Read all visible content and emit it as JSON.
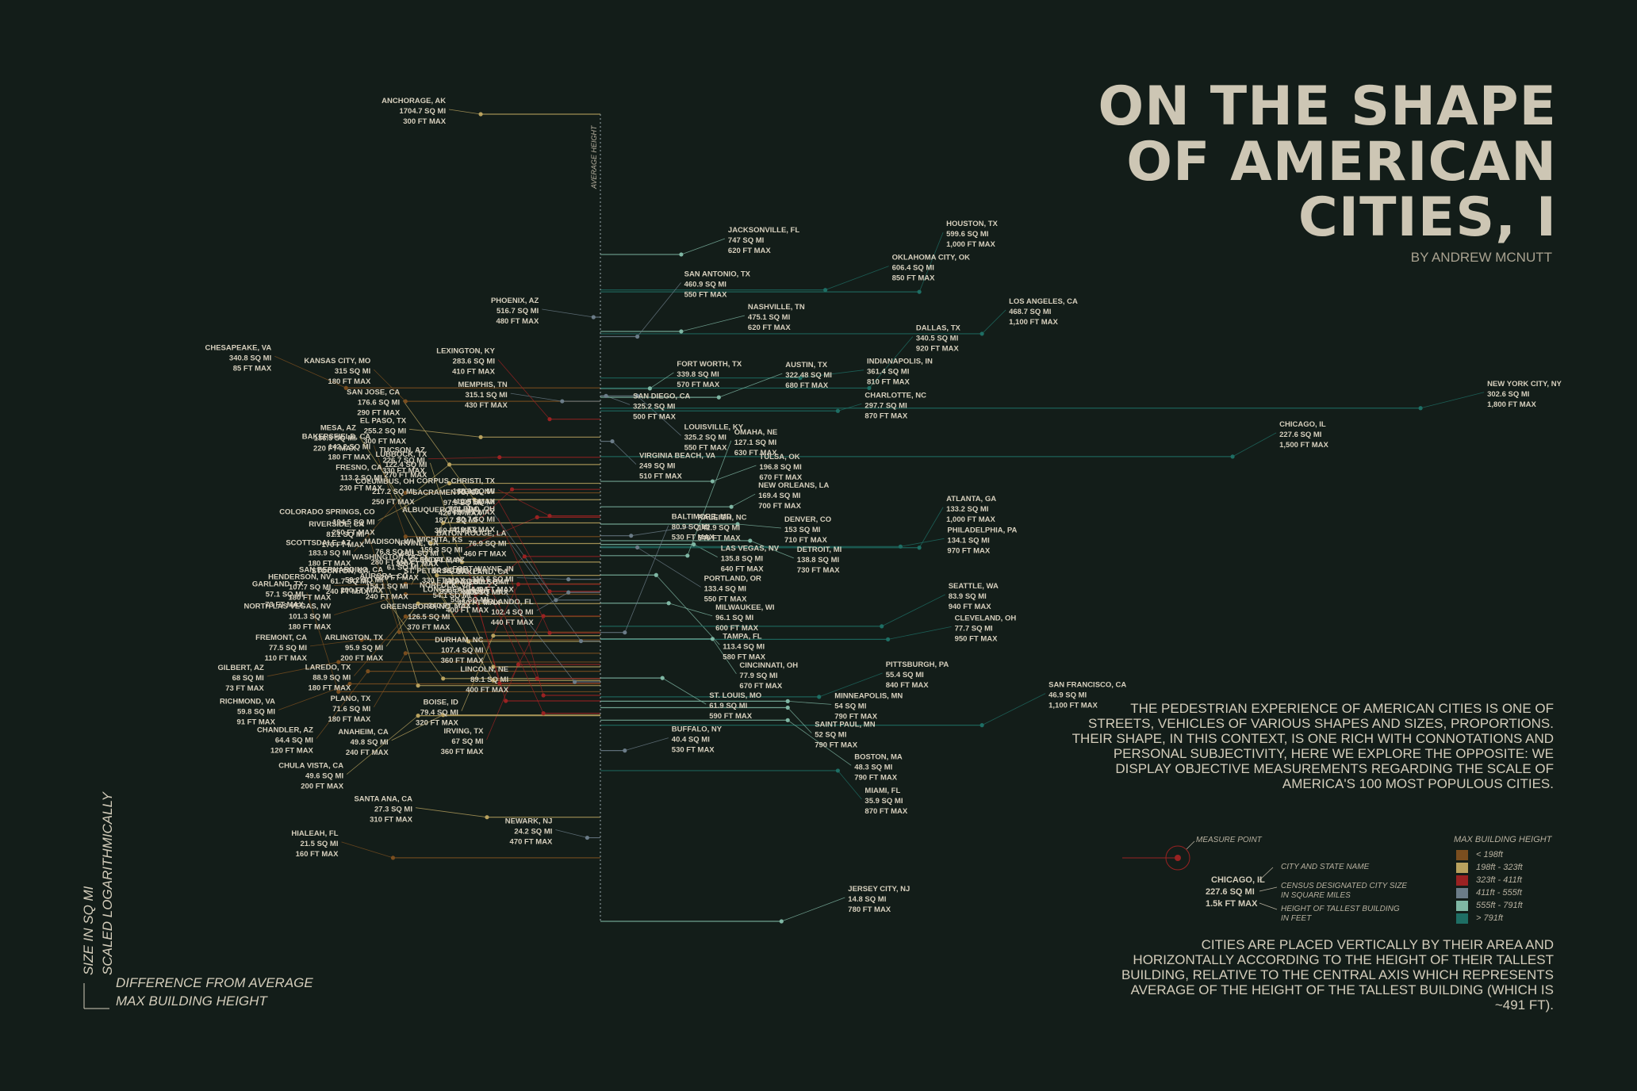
{
  "title": "ON THE SHAPE\nOF AMERICAN\nCITIES, I",
  "byline": "BY ANDREW MCNUTT",
  "intro": "THE PEDESTRIAN EXPERIENCE OF AMERICAN CITIES IS ONE OF STREETS, VEHICLES OF VARIOUS SHAPES AND SIZES, PROPORTIONS. THEIR SHAPE, IN THIS CONTEXT, IS ONE RICH WITH CONNOTATIONS AND PERSONAL SUBJECTIVITY, HERE WE EXPLORE THE OPPOSITE: WE DISPLAY OBJECTIVE MEASUREMENTS REGARDING THE SCALE OF AMERICA'S 100 MOST POPULOUS CITIES.",
  "method": "CITIES ARE PLACED VERTICALLY BY THEIR AREA AND HORIZONTALLY ACCORDING TO THE HEIGHT OF THEIR TALLEST BUILDING, RELATIVE TO THE CENTRAL AXIS WHICH REPRESENTS AVERAGE OF THE HEIGHT OF THE TALLEST BUILDING (WHICH IS ~491 FT).",
  "axis": {
    "y_label_1": "SIZE IN SQ MI",
    "y_label_2": "SCALED LOGARITHMICALLY",
    "x_label_1": "DIFFERENCE FROM AVERAGE",
    "x_label_2": "MAX BUILDING HEIGHT",
    "center_label": "AVERAGE HEIGHT"
  },
  "legend": {
    "title": "MAX BUILDING HEIGHT",
    "items": [
      {
        "label": "< 198ft",
        "color": "#7a4e1f"
      },
      {
        "label": "198ft - 323ft",
        "color": "#b9a25e"
      },
      {
        "label": "323ft - 411ft",
        "color": "#9a2222"
      },
      {
        "label": "411ft - 555ft",
        "color": "#6b7c88"
      },
      {
        "label": "555ft - 791ft",
        "color": "#7fb7a4"
      },
      {
        "label": "> 791ft",
        "color": "#1e6e64"
      }
    ],
    "measure_point": "MEASURE POINT",
    "example_city": "CHICAGO, IL",
    "example_area": "227.6 SQ MI",
    "example_height": "1.5k FT MAX",
    "key_city": "CITY AND STATE NAME",
    "key_area_1": "CENSUS DESIGNATED CITY SIZE",
    "key_area_2": "IN SQUARE MILES",
    "key_height_1": "HEIGHT OF TALLEST BUILDING",
    "key_height_2": "IN FEET"
  },
  "chart_data": {
    "type": "scatter",
    "average_height_ft": 491,
    "y_scale": "log",
    "points": [
      {
        "city": "ANCHORAGE, AK",
        "area": "1704.7 SQ MI",
        "height": "300 FT MAX",
        "area_sq_mi": 1704.7,
        "height_ft": 300
      },
      {
        "city": "JACKSONVILLE, FL",
        "area": "747 SQ MI",
        "height": "620 FT MAX",
        "area_sq_mi": 747,
        "height_ft": 620
      },
      {
        "city": "OKLAHOMA CITY, OK",
        "area": "606.4 SQ MI",
        "height": "850 FT MAX",
        "area_sq_mi": 606.4,
        "height_ft": 850
      },
      {
        "city": "HOUSTON, TX",
        "area": "599.6 SQ MI",
        "height": "1,000 FT MAX",
        "area_sq_mi": 599.6,
        "height_ft": 1000
      },
      {
        "city": "PHOENIX, AZ",
        "area": "516.7 SQ MI",
        "height": "480 FT MAX",
        "area_sq_mi": 516.7,
        "height_ft": 480
      },
      {
        "city": "NASHVILLE, TN",
        "area": "475.1 SQ MI",
        "height": "620 FT MAX",
        "area_sq_mi": 475.1,
        "height_ft": 620
      },
      {
        "city": "LOS ANGELES, CA",
        "area": "468.7 SQ MI",
        "height": "1,100 FT MAX",
        "area_sq_mi": 468.7,
        "height_ft": 1100
      },
      {
        "city": "SAN ANTONIO, TX",
        "area": "460.9 SQ MI",
        "height": "550 FT MAX",
        "area_sq_mi": 460.9,
        "height_ft": 550
      },
      {
        "city": "INDIANAPOLIS, IN",
        "area": "361.4 SQ MI",
        "height": "810 FT MAX",
        "area_sq_mi": 361.4,
        "height_ft": 810
      },
      {
        "city": "FORT WORTH, TX",
        "area": "339.8 SQ MI",
        "height": "570 FT MAX",
        "area_sq_mi": 339.8,
        "height_ft": 570
      },
      {
        "city": "DALLAS, TX",
        "area": "340.5 SQ MI",
        "height": "920 FT MAX",
        "area_sq_mi": 340.5,
        "height_ft": 920
      },
      {
        "city": "CHESAPEAKE, VA",
        "area": "340.8 SQ MI",
        "height": "85 FT MAX",
        "area_sq_mi": 340.8,
        "height_ft": 85
      },
      {
        "city": "SAN DIEGO, CA",
        "area": "325.2 SQ MI",
        "height": "500 FT MAX",
        "area_sq_mi": 325.2,
        "height_ft": 500
      },
      {
        "city": "LOUISVILLE, KY",
        "area": "325.2 SQ MI",
        "height": "550 FT MAX",
        "area_sq_mi": 325.2,
        "height_ft": 550
      },
      {
        "city": "AUSTIN, TX",
        "area": "322.48 SQ MI",
        "height": "680 FT MAX",
        "area_sq_mi": 322.48,
        "height_ft": 680
      },
      {
        "city": "KANSAS CITY, MO",
        "area": "315 SQ MI",
        "height": "180 FT MAX",
        "area_sq_mi": 315,
        "height_ft": 180
      },
      {
        "city": "MEMPHIS, TN",
        "area": "315.1 SQ MI",
        "height": "430 FT MAX",
        "area_sq_mi": 315.1,
        "height_ft": 430
      },
      {
        "city": "NEW YORK CITY, NY",
        "area": "302.6 SQ MI",
        "height": "1,800 FT MAX",
        "area_sq_mi": 302.6,
        "height_ft": 1800
      },
      {
        "city": "CHARLOTTE, NC",
        "area": "297.7 SQ MI",
        "height": "870 FT MAX",
        "area_sq_mi": 297.7,
        "height_ft": 870
      },
      {
        "city": "LEXINGTON, KY",
        "area": "283.6 SQ MI",
        "height": "410 FT MAX",
        "area_sq_mi": 283.6,
        "height_ft": 410
      },
      {
        "city": "EL PASO, TX",
        "area": "255.2 SQ MI",
        "height": "300 FT MAX",
        "area_sq_mi": 255.2,
        "height_ft": 300
      },
      {
        "city": "VIRGINIA BEACH, VA",
        "area": "249 SQ MI",
        "height": "510 FT MAX",
        "area_sq_mi": 249,
        "height_ft": 510
      },
      {
        "city": "CHICAGO, IL",
        "area": "227.6 SQ MI",
        "height": "1,500 FT MAX",
        "area_sq_mi": 227.6,
        "height_ft": 1500
      },
      {
        "city": "TUCSON, AZ",
        "area": "226.7 SQ MI",
        "height": "330 FT MAX",
        "area_sq_mi": 226.7,
        "height_ft": 330
      },
      {
        "city": "COLUMBUS, OH",
        "area": "217.2 SQ MI",
        "height": "250 FT MAX",
        "area_sq_mi": 217.2,
        "height_ft": 250
      },
      {
        "city": "TULSA, OK",
        "area": "196.8 SQ MI",
        "height": "670 FT MAX",
        "area_sq_mi": 196.8,
        "height_ft": 670
      },
      {
        "city": "COLORADO SPRINGS, CO",
        "area": "194.5 SQ MI",
        "height": "250 FT MAX",
        "area_sq_mi": 194.5,
        "height_ft": 250
      },
      {
        "city": "ALBUQUERQUE, NM",
        "area": "187.7 SQ MI",
        "height": "350 FT MAX",
        "area_sq_mi": 187.7,
        "height_ft": 350
      },
      {
        "city": "SCOTTSDALE, AZ",
        "area": "183.9 SQ MI",
        "height": "180 FT MAX",
        "area_sq_mi": 183.9,
        "height_ft": 180
      },
      {
        "city": "SAN JOSE, CA",
        "area": "176.6 SQ MI",
        "height": "290 FT MAX",
        "area_sq_mi": 176.6,
        "height_ft": 290
      },
      {
        "city": "NEW ORLEANS, LA",
        "area": "169.4 SQ MI",
        "height": "700 FT MAX",
        "area_sq_mi": 169.4,
        "height_ft": 700
      },
      {
        "city": "CORPUS CHRISTI, TX",
        "area": "160.6 SQ MI",
        "height": "410 FT MAX",
        "area_sq_mi": 160.6,
        "height_ft": 410
      },
      {
        "city": "WICHITA, KS",
        "area": "159.3 SQ MI",
        "height": "390 FT MAX",
        "area_sq_mi": 159.3,
        "height_ft": 390
      },
      {
        "city": "AURORA, CO",
        "area": "154.1 SQ MI",
        "height": "240 FT MAX",
        "area_sq_mi": 154.1,
        "height_ft": 240
      },
      {
        "city": "DENVER, CO",
        "area": "153 SQ MI",
        "height": "710 FT MAX",
        "area_sq_mi": 153,
        "height_ft": 710
      },
      {
        "city": "RALEIGH, NC",
        "area": "142.9 SQ MI",
        "height": "540 FT MAX",
        "area_sq_mi": 142.9,
        "height_ft": 540
      },
      {
        "city": "BAKERSFIELD, CA",
        "area": "142.2 SQ MI",
        "height": "180 FT MAX",
        "area_sq_mi": 142.2,
        "height_ft": 180
      },
      {
        "city": "DETROIT, MI",
        "area": "138.8 SQ MI",
        "height": "730 FT MAX",
        "area_sq_mi": 138.8,
        "height_ft": 730
      },
      {
        "city": "MESA, AZ",
        "area": "136.5 SQ MI",
        "height": "220 FT MAX",
        "area_sq_mi": 136.5,
        "height_ft": 220
      },
      {
        "city": "LAS VEGAS, NV",
        "area": "135.8 SQ MI",
        "height": "640 FT MAX",
        "area_sq_mi": 135.8,
        "height_ft": 640
      },
      {
        "city": "PHILADELPHIA, PA",
        "area": "134.1 SQ MI",
        "height": "970 FT MAX",
        "area_sq_mi": 134.1,
        "height_ft": 970
      },
      {
        "city": "PORTLAND, OR",
        "area": "133.4 SQ MI",
        "height": "550 FT MAX",
        "area_sq_mi": 133.4,
        "height_ft": 550
      },
      {
        "city": "ATLANTA, GA",
        "area": "133.2 SQ MI",
        "height": "1,000 FT MAX",
        "area_sq_mi": 133.2,
        "height_ft": 1000
      },
      {
        "city": "OMAHA, NE",
        "area": "127.1 SQ MI",
        "height": "630 FT MAX",
        "area_sq_mi": 127.1,
        "height_ft": 630
      },
      {
        "city": "GREENSBORO, NC",
        "area": "126.5 SQ MI",
        "height": "370 FT MAX",
        "area_sq_mi": 126.5,
        "height_ft": 370
      },
      {
        "city": "LUBBOCK, TX",
        "area": "122.4 SQ MI",
        "height": "270 FT MAX",
        "area_sq_mi": 122.4,
        "height_ft": 270
      },
      {
        "city": "FORT WAYNE, IN",
        "area": "110.6 SQ MI",
        "height": "440 FT MAX",
        "area_sq_mi": 110.6,
        "height_ft": 440
      },
      {
        "city": "HENDERSON, NV",
        "area": "107.7 SQ MI",
        "height": "180 FT MAX",
        "area_sq_mi": 107.7,
        "height_ft": 180
      },
      {
        "city": "DURHAM, NC",
        "area": "107.4 SQ MI",
        "height": "360 FT MAX",
        "area_sq_mi": 107.4,
        "height_ft": 360
      },
      {
        "city": "FRESNO, CA",
        "area": "113.2 SQ MI",
        "height": "230 FT MAX",
        "area_sq_mi": 113.2,
        "height_ft": 230
      },
      {
        "city": "NORTH LAS VEGAS, NV",
        "area": "101.3 SQ MI",
        "height": "180 FT MAX",
        "area_sq_mi": 101.3,
        "height_ft": 180
      },
      {
        "city": "ORLANDO, FL",
        "area": "102.4 SQ MI",
        "height": "440 FT MAX",
        "area_sq_mi": 102.4,
        "height_ft": 440
      },
      {
        "city": "RENO, NV",
        "area": "103 SQ MI",
        "height": "410 FT MAX",
        "area_sq_mi": 103,
        "height_ft": 410
      },
      {
        "city": "SACRAMENTO, CA",
        "area": "97.9 SQ MI",
        "height": "420 FT MAX",
        "area_sq_mi": 97.9,
        "height_ft": 420
      },
      {
        "city": "ARLINGTON, TX",
        "area": "95.9 SQ MI",
        "height": "200 FT MAX",
        "area_sq_mi": 95.9,
        "height_ft": 200
      },
      {
        "city": "MILWAUKEE, WI",
        "area": "96.1 SQ MI",
        "height": "600 FT MAX",
        "area_sq_mi": 96.1,
        "height_ft": 600
      },
      {
        "city": "TAMPA, FL",
        "area": "113.4 SQ MI",
        "height": "580 FT MAX",
        "area_sq_mi": 113.4,
        "height_ft": 580
      },
      {
        "city": "LINCOLN, NE",
        "area": "89.1 SQ MI",
        "height": "400 FT MAX",
        "area_sq_mi": 89.1,
        "height_ft": 400
      },
      {
        "city": "LAREDO, TX",
        "area": "88.9 SQ MI",
        "height": "180 FT MAX",
        "area_sq_mi": 88.9,
        "height_ft": 180
      },
      {
        "city": "SEATTLE, WA",
        "area": "83.9 SQ MI",
        "height": "940 FT MAX",
        "area_sq_mi": 83.9,
        "height_ft": 940
      },
      {
        "city": "BOISE, ID",
        "area": "79.4 SQ MI",
        "height": "320 FT MAX",
        "area_sq_mi": 79.4,
        "height_ft": 320
      },
      {
        "city": "FREMONT, CA",
        "area": "77.5 SQ MI",
        "height": "110 FT MAX",
        "area_sq_mi": 77.5,
        "height_ft": 110
      },
      {
        "city": "CLEVELAND, OH",
        "area": "77.7 SQ MI",
        "height": "950 FT MAX",
        "area_sq_mi": 77.7,
        "height_ft": 950
      },
      {
        "city": "CINCINNATI, OH",
        "area": "77.9 SQ MI",
        "height": "670 FT MAX",
        "area_sq_mi": 77.9,
        "height_ft": 670
      },
      {
        "city": "MADISON, WI",
        "area": "76.8 SQ MI",
        "height": "280 FT MAX",
        "area_sq_mi": 76.8,
        "height_ft": 280
      },
      {
        "city": "BATON ROUGE, LA",
        "area": "76.9 SQ MI",
        "height": "460 FT MAX",
        "area_sq_mi": 76.9,
        "height_ft": 460
      },
      {
        "city": "PLANO, TX",
        "area": "71.6 SQ MI",
        "height": "180 FT MAX",
        "area_sq_mi": 71.6,
        "height_ft": 180
      },
      {
        "city": "TOLEDO, OH",
        "area": "80.7 SQ MI",
        "height": "410 FT MAX",
        "area_sq_mi": 80.7,
        "height_ft": 410
      },
      {
        "city": "GILBERT, AZ",
        "area": "68 SQ MI",
        "height": "73 FT MAX",
        "area_sq_mi": 68,
        "height_ft": 73
      },
      {
        "city": "RIVERSIDE, CA",
        "area": "81.1 SQ MI",
        "height": "170 FT MAX",
        "area_sq_mi": 81.1,
        "height_ft": 170
      },
      {
        "city": "BALTIMORE, MD",
        "area": "80.9 SQ MI",
        "height": "530 FT MAX",
        "area_sq_mi": 80.9,
        "height_ft": 530
      },
      {
        "city": "WASHINGTON, DC",
        "area": "61 SQ MI",
        "height": "320 FT MAX",
        "area_sq_mi": 61,
        "height_ft": 320
      },
      {
        "city": "IRVING, TX",
        "area": "67 SQ MI",
        "height": "360 FT MAX",
        "area_sq_mi": 67,
        "height_ft": 360
      },
      {
        "city": "CHANDLER, AZ",
        "area": "64.4 SQ MI",
        "height": "120 FT MAX",
        "area_sq_mi": 64.4,
        "height_ft": 120
      },
      {
        "city": "PITTSBURGH, PA",
        "area": "55.4 SQ MI",
        "height": "840 FT MAX",
        "area_sq_mi": 55.4,
        "height_ft": 840
      },
      {
        "city": "GLENDALE, AZ",
        "area": "60 SQ MI",
        "height": "330 FT MAX",
        "area_sq_mi": 60,
        "height_ft": 330
      },
      {
        "city": "MINNEAPOLIS, MN",
        "area": "54 SQ MI",
        "height": "790 FT MAX",
        "area_sq_mi": 54,
        "height_ft": 790
      },
      {
        "city": "STOCKTON, CA",
        "area": "61.7 SQ MI",
        "height": "240 FT MAX",
        "area_sq_mi": 61.7,
        "height_ft": 240
      },
      {
        "city": "SAN BERNARDINO, CA",
        "area": "59.2 SQ MI",
        "height": "200 FT MAX",
        "area_sq_mi": 59.2,
        "height_ft": 200
      },
      {
        "city": "IRVINE, CA",
        "area": "66.1 SQ MI",
        "height": "320 FT MAX",
        "area_sq_mi": 66.1,
        "height_ft": 320
      },
      {
        "city": "HONOLULU, HI",
        "area": "60.5 SQ MI",
        "height": "450 FT MAX",
        "area_sq_mi": 60.5,
        "height_ft": 450
      },
      {
        "city": "GARLAND, TX",
        "area": "57.1 SQ MI",
        "height": "73 FT MAX",
        "area_sq_mi": 57.1,
        "height_ft": 73
      },
      {
        "city": "ST. LOUIS, MO",
        "area": "61.9 SQ MI",
        "height": "590 FT MAX",
        "area_sq_mi": 61.9,
        "height_ft": 590
      },
      {
        "city": "SAN FRANCISCO, CA",
        "area": "46.9 SQ MI",
        "height": "1,100 FT MAX",
        "area_sq_mi": 46.9,
        "height_ft": 1100
      },
      {
        "city": "SAINT PAUL, MN",
        "area": "52 SQ MI",
        "height": "790 FT MAX",
        "area_sq_mi": 52,
        "height_ft": 790
      },
      {
        "city": "ST. PETERSBURG, FL",
        "area": "61.7 SQ MI",
        "height": "390 FT MAX",
        "area_sq_mi": 61.7,
        "height_ft": 390
      },
      {
        "city": "RICHMOND, VA",
        "area": "59.8 SQ MI",
        "height": "91 FT MAX",
        "area_sq_mi": 59.8,
        "height_ft": 91
      },
      {
        "city": "OAKLAND, CA",
        "area": "55.9 SQ MI",
        "height": "400 FT MAX",
        "area_sq_mi": 55.9,
        "height_ft": 400
      },
      {
        "city": "ANAHEIM, CA",
        "area": "49.8 SQ MI",
        "height": "240 FT MAX",
        "area_sq_mi": 49.8,
        "height_ft": 240
      },
      {
        "city": "BOSTON, MA",
        "area": "48.3 SQ MI",
        "height": "790 FT MAX",
        "area_sq_mi": 48.3,
        "height_ft": 790
      },
      {
        "city": "NORFOLK, VA",
        "area": "54.1 SQ MI",
        "height": "340 FT MAX",
        "area_sq_mi": 54.1,
        "height_ft": 340
      },
      {
        "city": "LONG BEACH, CA",
        "area": "50.3 SQ MI",
        "height": "400 FT MAX",
        "area_sq_mi": 50.3,
        "height_ft": 400
      },
      {
        "city": "CHULA VISTA, CA",
        "area": "49.6 SQ MI",
        "height": "200 FT MAX",
        "area_sq_mi": 49.6,
        "height_ft": 200
      },
      {
        "city": "MIAMI, FL",
        "area": "35.9 SQ MI",
        "height": "870 FT MAX",
        "area_sq_mi": 35.9,
        "height_ft": 870
      },
      {
        "city": "BUFFALO, NY",
        "area": "40.4 SQ MI",
        "height": "530 FT MAX",
        "area_sq_mi": 40.4,
        "height_ft": 530
      },
      {
        "city": "SANTA ANA, CA",
        "area": "27.3 SQ MI",
        "height": "310 FT MAX",
        "area_sq_mi": 27.3,
        "height_ft": 310
      },
      {
        "city": "NEWARK, NJ",
        "area": "24.2 SQ MI",
        "height": "470 FT MAX",
        "area_sq_mi": 24.2,
        "height_ft": 470
      },
      {
        "city": "HIALEAH, FL",
        "area": "21.5 SQ MI",
        "height": "160 FT MAX",
        "area_sq_mi": 21.5,
        "height_ft": 160
      },
      {
        "city": "JERSEY CITY, NJ",
        "area": "14.8 SQ MI",
        "height": "780 FT MAX",
        "area_sq_mi": 14.8,
        "height_ft": 780
      }
    ]
  }
}
